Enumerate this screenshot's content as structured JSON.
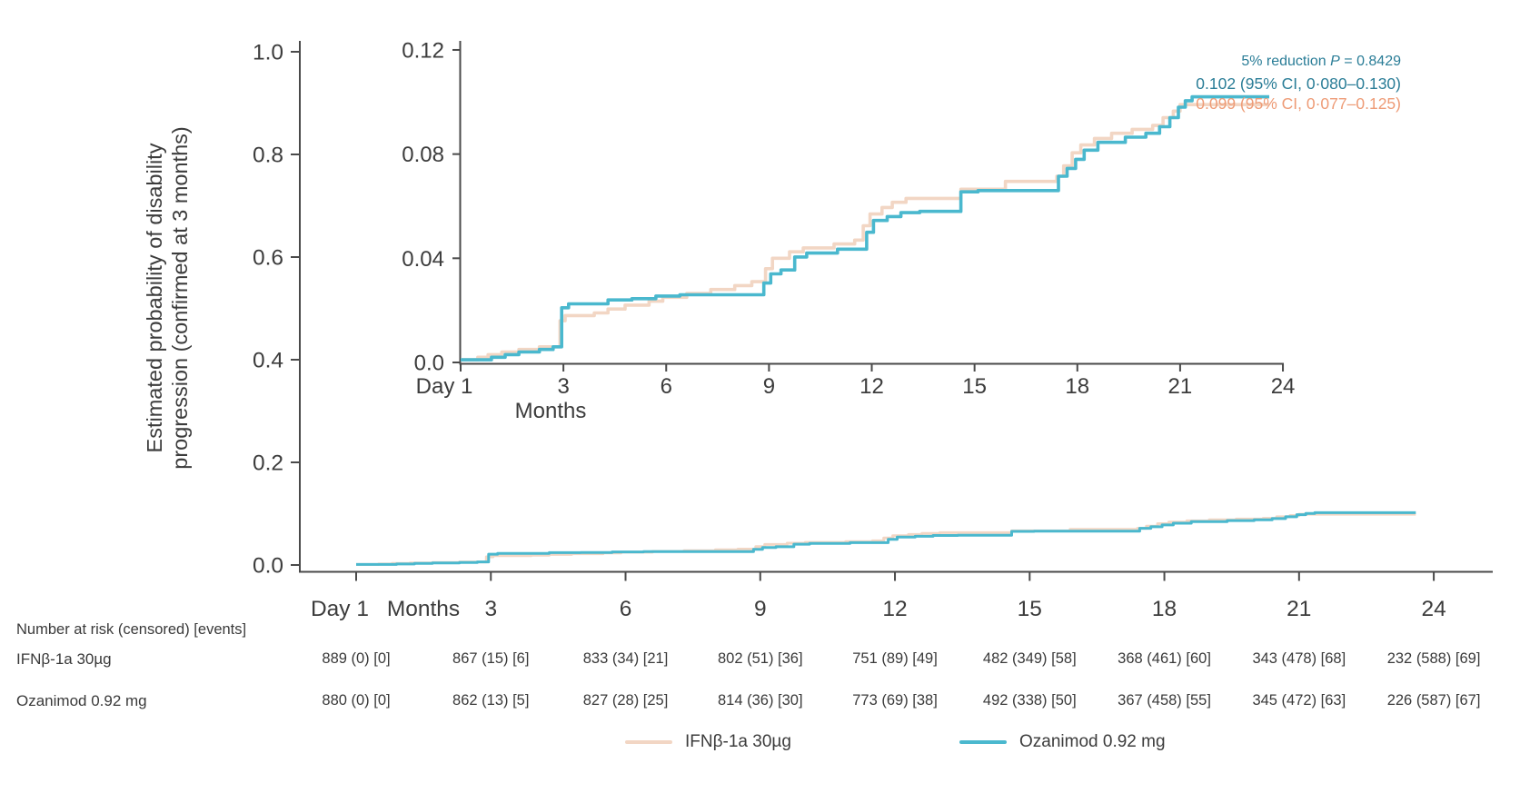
{
  "chart_data": {
    "type": "line",
    "subtype": "kaplan-meier-step-cumulative-incidence",
    "title": "",
    "ylabel": "Estimated probability of disability progression (confirmed at 3 months)",
    "ylabel_lines": [
      "Estimated probability of disability",
      "progression (confirmed at 3 months)"
    ],
    "xlabel_unit": "Months",
    "x_tick_labels": [
      "Day 1",
      "3",
      "6",
      "9",
      "12",
      "15",
      "18",
      "21",
      "24"
    ],
    "x_tick_months": [
      0,
      3,
      6,
      9,
      12,
      15,
      18,
      21,
      24
    ],
    "x_range_months": [
      0,
      24
    ],
    "main_axis": {
      "ylim": [
        0,
        1.0
      ],
      "ytick_labels": [
        "0.0",
        "0.2",
        "0.4",
        "0.6",
        "0.8",
        "1.0"
      ],
      "ytick_values": [
        0,
        0.2,
        0.4,
        0.6,
        0.8,
        1.0
      ],
      "grid": false
    },
    "inset_axis": {
      "ylim": [
        0,
        0.12
      ],
      "ytick_labels": [
        "0.0",
        "0.04",
        "0.08",
        "0.12"
      ],
      "ytick_values": [
        0,
        0.04,
        0.08,
        0.12
      ],
      "grid": false
    },
    "series": [
      {
        "key": "ifn",
        "name": "IFNβ-1a 30µg",
        "color": "#f2d6c4",
        "final_estimate": 0.099,
        "steps": [
          [
            0,
            0.001
          ],
          [
            0.5,
            0.002
          ],
          [
            0.8,
            0.003
          ],
          [
            1.2,
            0.004
          ],
          [
            1.7,
            0.005
          ],
          [
            2.3,
            0.006
          ],
          [
            2.9,
            0.016
          ],
          [
            3.05,
            0.018
          ],
          [
            3.9,
            0.019
          ],
          [
            4.3,
            0.0205
          ],
          [
            4.8,
            0.022
          ],
          [
            5.5,
            0.0235
          ],
          [
            5.9,
            0.025
          ],
          [
            6.6,
            0.0265
          ],
          [
            7.3,
            0.028
          ],
          [
            8.0,
            0.0295
          ],
          [
            8.5,
            0.031
          ],
          [
            8.9,
            0.036
          ],
          [
            9.1,
            0.04
          ],
          [
            9.6,
            0.0425
          ],
          [
            10.0,
            0.044
          ],
          [
            10.9,
            0.0455
          ],
          [
            11.5,
            0.047
          ],
          [
            11.75,
            0.0525
          ],
          [
            11.95,
            0.057
          ],
          [
            12.3,
            0.0595
          ],
          [
            12.6,
            0.0615
          ],
          [
            13.0,
            0.063
          ],
          [
            14.6,
            0.0665
          ],
          [
            15.9,
            0.0695
          ],
          [
            17.4,
            0.0715
          ],
          [
            17.6,
            0.0755
          ],
          [
            17.85,
            0.0805
          ],
          [
            18.1,
            0.0835
          ],
          [
            18.5,
            0.086
          ],
          [
            19.0,
            0.088
          ],
          [
            19.6,
            0.0895
          ],
          [
            20.2,
            0.091
          ],
          [
            20.5,
            0.094
          ],
          [
            20.8,
            0.0965
          ],
          [
            21.0,
            0.099
          ],
          [
            23.6,
            0.099
          ]
        ]
      },
      {
        "key": "ozanimod",
        "name": "Ozanimod 0.92 mg",
        "color": "#4ab8ce",
        "final_estimate": 0.102,
        "steps": [
          [
            0,
            0.001
          ],
          [
            0.9,
            0.002
          ],
          [
            1.3,
            0.003
          ],
          [
            1.7,
            0.004
          ],
          [
            2.3,
            0.005
          ],
          [
            2.7,
            0.006
          ],
          [
            2.95,
            0.021
          ],
          [
            3.15,
            0.0225
          ],
          [
            4.3,
            0.024
          ],
          [
            5.0,
            0.0245
          ],
          [
            5.7,
            0.0255
          ],
          [
            6.4,
            0.026
          ],
          [
            8.85,
            0.0305
          ],
          [
            9.05,
            0.034
          ],
          [
            9.35,
            0.0355
          ],
          [
            9.75,
            0.0405
          ],
          [
            10.1,
            0.042
          ],
          [
            11.0,
            0.0435
          ],
          [
            11.85,
            0.05
          ],
          [
            12.05,
            0.0545
          ],
          [
            12.45,
            0.056
          ],
          [
            12.85,
            0.0575
          ],
          [
            13.4,
            0.058
          ],
          [
            14.6,
            0.0655
          ],
          [
            15.1,
            0.066
          ],
          [
            17.45,
            0.0715
          ],
          [
            17.7,
            0.0745
          ],
          [
            17.95,
            0.078
          ],
          [
            18.2,
            0.0815
          ],
          [
            18.6,
            0.0845
          ],
          [
            19.4,
            0.0865
          ],
          [
            20.0,
            0.088
          ],
          [
            20.4,
            0.0905
          ],
          [
            20.7,
            0.094
          ],
          [
            20.95,
            0.098
          ],
          [
            21.15,
            0.1005
          ],
          [
            21.35,
            0.102
          ],
          [
            23.6,
            0.102
          ]
        ]
      }
    ],
    "annotations": {
      "reduction": {
        "pre": "5% reduction ",
        "stat": "P",
        "post": " = 0.8429",
        "color": "#2a7d97"
      },
      "ozanimod_estimate": {
        "text": "0.102 (95% CI, 0·080–0.130)",
        "color": "#2a7d97"
      },
      "ifn_estimate": {
        "text": "0.099 (95% CI, 0·077–0.125)",
        "color": "#ee9b76"
      }
    },
    "legend_position": "bottom-center"
  },
  "risk_table": {
    "header": "Number at risk (censored) [events]",
    "rows": [
      {
        "label": "IFNβ-1a 30µg",
        "values": [
          "889 (0) [0]",
          "867 (15) [6]",
          "833 (34) [21]",
          "802 (51) [36]",
          "751 (89) [49]",
          "482 (349) [58]",
          "368 (461) [60]",
          "343 (478) [68]",
          "232 (588) [69]"
        ]
      },
      {
        "label": "Ozanimod 0.92 mg",
        "values": [
          "880 (0) [0]",
          "862 (13) [5]",
          "827 (28) [25]",
          "814 (36) [30]",
          "773 (69) [38]",
          "492 (338) [50]",
          "367 (458) [55]",
          "345 (472) [63]",
          "226 (587) [67]"
        ]
      }
    ]
  },
  "legend": {
    "items": [
      {
        "key": "ifn",
        "label": "IFNβ-1a 30µg",
        "color": "#f2d6c4"
      },
      {
        "key": "ozanimod",
        "label": "Ozanimod 0.92 mg",
        "color": "#4ab8ce"
      }
    ]
  },
  "colors": {
    "axis": "#4a4a4a",
    "text": "#3e3e3e",
    "ifn_line": "#f2d6c4",
    "ozanimod_line": "#4ab8ce",
    "teal_annotation_text": "#2a7d97",
    "salmon_annotation_text": "#ee9b76"
  }
}
